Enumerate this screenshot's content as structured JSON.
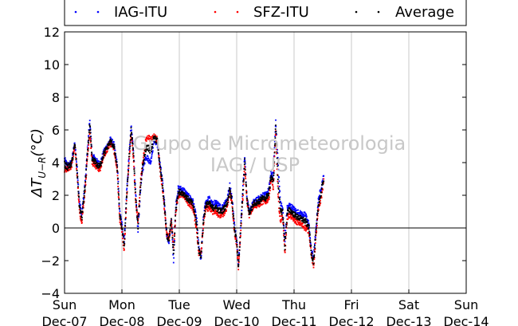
{
  "chart_data": {
    "type": "scatter",
    "ylabel": "ΔT_{U−R}(°C)",
    "ylabel_display": {
      "prefix": "ΔT",
      "sub": "U−R",
      "unit": "(°C)"
    },
    "ylim": [
      -4,
      12
    ],
    "yticks": [
      -4,
      -2,
      0,
      2,
      4,
      6,
      8,
      10,
      12
    ],
    "x_tick_labels": [
      {
        "day": "Sun",
        "date": "Dec-07"
      },
      {
        "day": "Mon",
        "date": "Dec-08"
      },
      {
        "day": "Tue",
        "date": "Dec-09"
      },
      {
        "day": "Wed",
        "date": "Dec-10"
      },
      {
        "day": "Thu",
        "date": "Dec-11"
      },
      {
        "day": "Fri",
        "date": "Dec-12"
      },
      {
        "day": "Sat",
        "date": "Dec-13"
      },
      {
        "day": "Sun",
        "date": "Dec-14"
      }
    ],
    "xlim_days": [
      0,
      7
    ],
    "grid": "vertical",
    "zero_line": true,
    "legend_position": "top",
    "watermark": [
      "Grupo de Micrometeorologia",
      "IAG / USP"
    ],
    "series": [
      {
        "name": "IAG-ITU",
        "color": "#0000ff",
        "anchors": [
          [
            0.0,
            4.2
          ],
          [
            0.05,
            3.8
          ],
          [
            0.12,
            4.0
          ],
          [
            0.18,
            5.2
          ],
          [
            0.22,
            3.6
          ],
          [
            0.26,
            1.6
          ],
          [
            0.3,
            0.8
          ],
          [
            0.36,
            2.8
          ],
          [
            0.4,
            4.8
          ],
          [
            0.44,
            6.6
          ],
          [
            0.48,
            4.4
          ],
          [
            0.52,
            4.3
          ],
          [
            0.58,
            4.0
          ],
          [
            0.62,
            3.9
          ],
          [
            0.68,
            4.6
          ],
          [
            0.74,
            5.0
          ],
          [
            0.8,
            5.4
          ],
          [
            0.86,
            5.1
          ],
          [
            0.92,
            3.8
          ],
          [
            0.96,
            1.0
          ],
          [
            1.0,
            0.2
          ],
          [
            1.04,
            -0.8
          ],
          [
            1.08,
            2.0
          ],
          [
            1.12,
            4.2
          ],
          [
            1.16,
            6.2
          ],
          [
            1.2,
            4.8
          ],
          [
            1.24,
            2.0
          ],
          [
            1.28,
            -0.2
          ],
          [
            1.32,
            2.2
          ],
          [
            1.36,
            3.6
          ],
          [
            1.42,
            4.4
          ],
          [
            1.46,
            4.2
          ],
          [
            1.5,
            4.0
          ],
          [
            1.56,
            5.4
          ],
          [
            1.62,
            5.1
          ],
          [
            1.66,
            4.0
          ],
          [
            1.7,
            3.0
          ],
          [
            1.74,
            1.6
          ],
          [
            1.78,
            -0.4
          ],
          [
            1.82,
            -1.0
          ],
          [
            1.86,
            0.6
          ],
          [
            1.9,
            -2.0
          ],
          [
            1.94,
            1.4
          ],
          [
            1.98,
            2.4
          ],
          [
            2.02,
            2.4
          ],
          [
            2.08,
            2.3
          ],
          [
            2.14,
            2.0
          ],
          [
            2.2,
            1.8
          ],
          [
            2.24,
            1.6
          ],
          [
            2.3,
            0.6
          ],
          [
            2.34,
            -1.2
          ],
          [
            2.38,
            -2.0
          ],
          [
            2.42,
            0.6
          ],
          [
            2.46,
            1.6
          ],
          [
            2.52,
            1.8
          ],
          [
            2.58,
            1.4
          ],
          [
            2.62,
            1.6
          ],
          [
            2.68,
            1.4
          ],
          [
            2.74,
            1.2
          ],
          [
            2.8,
            1.6
          ],
          [
            2.84,
            1.8
          ],
          [
            2.88,
            2.6
          ],
          [
            2.92,
            1.8
          ],
          [
            2.96,
            0.2
          ],
          [
            3.0,
            -0.8
          ],
          [
            3.03,
            -2.2
          ],
          [
            3.06,
            -0.6
          ],
          [
            3.1,
            2.0
          ],
          [
            3.14,
            4.4
          ],
          [
            3.18,
            1.8
          ],
          [
            3.22,
            1.0
          ],
          [
            3.3,
            1.6
          ],
          [
            3.38,
            1.8
          ],
          [
            3.44,
            2.0
          ],
          [
            3.5,
            2.0
          ],
          [
            3.56,
            2.3
          ],
          [
            3.6,
            3.4
          ],
          [
            3.64,
            3.2
          ],
          [
            3.68,
            6.6
          ],
          [
            3.72,
            4.0
          ],
          [
            3.76,
            1.6
          ],
          [
            3.8,
            1.2
          ],
          [
            3.84,
            -0.8
          ],
          [
            3.88,
            1.2
          ],
          [
            3.92,
            1.4
          ],
          [
            3.98,
            1.2
          ],
          [
            4.04,
            1.0
          ],
          [
            4.1,
            0.9
          ],
          [
            4.16,
            0.8
          ],
          [
            4.2,
            0.8
          ],
          [
            4.26,
            0.2
          ],
          [
            4.3,
            -1.4
          ],
          [
            4.34,
            -1.8
          ],
          [
            4.38,
            -0.2
          ],
          [
            4.42,
            1.6
          ],
          [
            4.48,
            2.6
          ],
          [
            4.52,
            3.2
          ]
        ]
      },
      {
        "name": "SFZ-ITU",
        "color": "#ff0000",
        "anchors": [
          [
            0.0,
            3.6
          ],
          [
            0.05,
            3.6
          ],
          [
            0.12,
            3.8
          ],
          [
            0.18,
            5.0
          ],
          [
            0.22,
            3.2
          ],
          [
            0.26,
            1.0
          ],
          [
            0.3,
            0.4
          ],
          [
            0.36,
            2.4
          ],
          [
            0.4,
            4.4
          ],
          [
            0.44,
            6.0
          ],
          [
            0.48,
            4.0
          ],
          [
            0.52,
            3.9
          ],
          [
            0.58,
            3.6
          ],
          [
            0.62,
            3.6
          ],
          [
            0.68,
            4.4
          ],
          [
            0.74,
            4.8
          ],
          [
            0.8,
            5.2
          ],
          [
            0.86,
            4.8
          ],
          [
            0.92,
            3.4
          ],
          [
            0.96,
            0.6
          ],
          [
            1.0,
            -0.2
          ],
          [
            1.04,
            -1.4
          ],
          [
            1.08,
            1.6
          ],
          [
            1.12,
            3.8
          ],
          [
            1.16,
            5.8
          ],
          [
            1.2,
            4.4
          ],
          [
            1.24,
            1.6
          ],
          [
            1.28,
            0.4
          ],
          [
            1.32,
            2.6
          ],
          [
            1.36,
            4.0
          ],
          [
            1.42,
            5.4
          ],
          [
            1.46,
            5.6
          ],
          [
            1.5,
            5.4
          ],
          [
            1.56,
            5.6
          ],
          [
            1.62,
            5.4
          ],
          [
            1.66,
            3.6
          ],
          [
            1.7,
            2.6
          ],
          [
            1.74,
            1.2
          ],
          [
            1.78,
            -0.4
          ],
          [
            1.82,
            -0.6
          ],
          [
            1.86,
            0.4
          ],
          [
            1.9,
            -1.2
          ],
          [
            1.94,
            1.0
          ],
          [
            1.98,
            2.0
          ],
          [
            2.02,
            2.0
          ],
          [
            2.08,
            2.0
          ],
          [
            2.14,
            1.6
          ],
          [
            2.2,
            1.4
          ],
          [
            2.24,
            1.2
          ],
          [
            2.3,
            0.0
          ],
          [
            2.34,
            -1.6
          ],
          [
            2.38,
            -1.4
          ],
          [
            2.42,
            0.2
          ],
          [
            2.46,
            1.2
          ],
          [
            2.52,
            1.2
          ],
          [
            2.58,
            1.0
          ],
          [
            2.62,
            1.0
          ],
          [
            2.68,
            0.8
          ],
          [
            2.74,
            0.8
          ],
          [
            2.8,
            1.0
          ],
          [
            2.84,
            1.4
          ],
          [
            2.88,
            2.2
          ],
          [
            2.92,
            1.4
          ],
          [
            2.96,
            -0.2
          ],
          [
            3.0,
            -1.0
          ],
          [
            3.03,
            -2.4
          ],
          [
            3.06,
            -0.8
          ],
          [
            3.1,
            1.4
          ],
          [
            3.14,
            3.8
          ],
          [
            3.18,
            1.6
          ],
          [
            3.22,
            0.8
          ],
          [
            3.3,
            1.4
          ],
          [
            3.38,
            1.4
          ],
          [
            3.44,
            1.6
          ],
          [
            3.5,
            1.6
          ],
          [
            3.56,
            1.8
          ],
          [
            3.6,
            3.0
          ],
          [
            3.64,
            2.4
          ],
          [
            3.68,
            6.0
          ],
          [
            3.72,
            2.0
          ],
          [
            3.76,
            0.4
          ],
          [
            3.8,
            0.8
          ],
          [
            3.84,
            -1.6
          ],
          [
            3.88,
            0.6
          ],
          [
            3.92,
            0.8
          ],
          [
            3.98,
            0.6
          ],
          [
            4.04,
            0.4
          ],
          [
            4.1,
            0.3
          ],
          [
            4.16,
            0.1
          ],
          [
            4.2,
            0.0
          ],
          [
            4.26,
            -0.2
          ],
          [
            4.3,
            -1.6
          ],
          [
            4.34,
            -2.4
          ],
          [
            4.38,
            -0.6
          ],
          [
            4.42,
            1.0
          ],
          [
            4.48,
            2.0
          ],
          [
            4.52,
            3.0
          ]
        ]
      },
      {
        "name": "Average",
        "color": "#000000",
        "anchors": [
          [
            0.0,
            3.9
          ],
          [
            0.05,
            3.7
          ],
          [
            0.12,
            3.9
          ],
          [
            0.18,
            5.1
          ],
          [
            0.22,
            3.4
          ],
          [
            0.26,
            1.3
          ],
          [
            0.3,
            0.6
          ],
          [
            0.36,
            2.6
          ],
          [
            0.4,
            4.6
          ],
          [
            0.44,
            6.3
          ],
          [
            0.48,
            4.2
          ],
          [
            0.52,
            4.1
          ],
          [
            0.58,
            3.8
          ],
          [
            0.62,
            3.8
          ],
          [
            0.68,
            4.5
          ],
          [
            0.74,
            4.9
          ],
          [
            0.8,
            5.3
          ],
          [
            0.86,
            5.0
          ],
          [
            0.92,
            3.6
          ],
          [
            0.96,
            0.8
          ],
          [
            1.0,
            0.0
          ],
          [
            1.04,
            -1.1
          ],
          [
            1.08,
            1.8
          ],
          [
            1.12,
            4.0
          ],
          [
            1.16,
            6.0
          ],
          [
            1.2,
            4.6
          ],
          [
            1.24,
            1.8
          ],
          [
            1.28,
            0.1
          ],
          [
            1.32,
            2.4
          ],
          [
            1.36,
            3.8
          ],
          [
            1.42,
            4.9
          ],
          [
            1.46,
            4.9
          ],
          [
            1.5,
            4.7
          ],
          [
            1.56,
            5.5
          ],
          [
            1.62,
            5.3
          ],
          [
            1.66,
            3.8
          ],
          [
            1.7,
            2.8
          ],
          [
            1.74,
            1.4
          ],
          [
            1.78,
            -0.4
          ],
          [
            1.82,
            -0.8
          ],
          [
            1.86,
            0.5
          ],
          [
            1.9,
            -1.6
          ],
          [
            1.94,
            1.2
          ],
          [
            1.98,
            2.2
          ],
          [
            2.02,
            2.2
          ],
          [
            2.08,
            2.1
          ],
          [
            2.14,
            1.8
          ],
          [
            2.2,
            1.6
          ],
          [
            2.24,
            1.4
          ],
          [
            2.3,
            0.3
          ],
          [
            2.34,
            -1.4
          ],
          [
            2.38,
            -1.7
          ],
          [
            2.42,
            0.4
          ],
          [
            2.46,
            1.4
          ],
          [
            2.52,
            1.5
          ],
          [
            2.58,
            1.2
          ],
          [
            2.62,
            1.3
          ],
          [
            2.68,
            1.1
          ],
          [
            2.74,
            1.0
          ],
          [
            2.8,
            1.3
          ],
          [
            2.84,
            1.6
          ],
          [
            2.88,
            2.4
          ],
          [
            2.92,
            1.6
          ],
          [
            2.96,
            0.0
          ],
          [
            3.0,
            -0.9
          ],
          [
            3.03,
            -2.3
          ],
          [
            3.06,
            -0.7
          ],
          [
            3.1,
            1.7
          ],
          [
            3.14,
            4.1
          ],
          [
            3.18,
            1.7
          ],
          [
            3.22,
            0.9
          ],
          [
            3.3,
            1.5
          ],
          [
            3.38,
            1.6
          ],
          [
            3.44,
            1.8
          ],
          [
            3.5,
            1.8
          ],
          [
            3.56,
            2.1
          ],
          [
            3.6,
            3.2
          ],
          [
            3.64,
            2.8
          ],
          [
            3.68,
            6.3
          ],
          [
            3.72,
            3.0
          ],
          [
            3.76,
            1.0
          ],
          [
            3.8,
            1.0
          ],
          [
            3.84,
            -1.2
          ],
          [
            3.88,
            0.9
          ],
          [
            3.92,
            1.1
          ],
          [
            3.98,
            0.9
          ],
          [
            4.04,
            0.7
          ],
          [
            4.1,
            0.6
          ],
          [
            4.16,
            0.5
          ],
          [
            4.2,
            0.4
          ],
          [
            4.26,
            0.0
          ],
          [
            4.3,
            -1.5
          ],
          [
            4.34,
            -2.1
          ],
          [
            4.38,
            -0.4
          ],
          [
            4.42,
            1.3
          ],
          [
            4.48,
            2.3
          ],
          [
            4.52,
            3.1
          ]
        ]
      }
    ]
  }
}
